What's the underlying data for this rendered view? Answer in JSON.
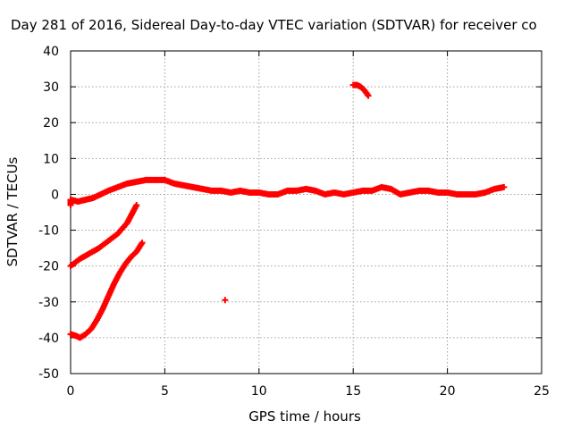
{
  "chart_data": {
    "type": "scatter",
    "title": "Day 281 of 2016, Sidereal Day-to-day VTEC variation (SDTVAR) for receiver co",
    "xlabel": "GPS time / hours",
    "ylabel": "SDTVAR / TECUs",
    "xlim": [
      0,
      25
    ],
    "ylim": [
      -50,
      40
    ],
    "xticks": [
      0,
      5,
      10,
      15,
      20,
      25
    ],
    "yticks": [
      -50,
      -40,
      -30,
      -20,
      -10,
      0,
      10,
      20,
      30,
      40
    ],
    "xtick_labels": [
      "0",
      "5",
      "10",
      "15",
      "20",
      "25"
    ],
    "ytick_labels": [
      "-50",
      "-40",
      "-30",
      "-20",
      "-10",
      "0",
      "10",
      "20",
      "30",
      "40"
    ],
    "grid": true,
    "marker_color": "#ff0000",
    "series": [
      {
        "name": "main-band",
        "points": [
          [
            0.0,
            -3
          ],
          [
            0.0,
            -1.5
          ],
          [
            0.4,
            -2
          ],
          [
            0.8,
            -1.5
          ],
          [
            1.2,
            -1
          ],
          [
            1.6,
            0
          ],
          [
            2.0,
            1
          ],
          [
            2.5,
            2
          ],
          [
            3.0,
            3
          ],
          [
            3.5,
            3.5
          ],
          [
            4.0,
            4
          ],
          [
            4.5,
            4
          ],
          [
            5.0,
            4
          ],
          [
            5.5,
            3
          ],
          [
            6.0,
            2.5
          ],
          [
            6.5,
            2
          ],
          [
            7.0,
            1.5
          ],
          [
            7.5,
            1
          ],
          [
            8.0,
            1
          ],
          [
            8.5,
            0.5
          ],
          [
            9.0,
            1
          ],
          [
            9.5,
            0.5
          ],
          [
            10.0,
            0.5
          ],
          [
            10.5,
            0
          ],
          [
            11.0,
            0
          ],
          [
            11.5,
            1
          ],
          [
            12.0,
            1
          ],
          [
            12.5,
            1.5
          ],
          [
            13.0,
            1
          ],
          [
            13.5,
            0
          ],
          [
            14.0,
            0.5
          ],
          [
            14.5,
            0
          ],
          [
            15.0,
            0.5
          ],
          [
            15.5,
            1
          ],
          [
            16.0,
            1
          ],
          [
            16.5,
            2
          ],
          [
            17.0,
            1.5
          ],
          [
            17.5,
            0
          ],
          [
            18.0,
            0.5
          ],
          [
            18.5,
            1
          ],
          [
            19.0,
            1
          ],
          [
            19.5,
            0.5
          ],
          [
            20.0,
            0.5
          ],
          [
            20.5,
            0
          ],
          [
            21.0,
            0
          ],
          [
            21.5,
            0
          ],
          [
            22.0,
            0.5
          ],
          [
            22.5,
            1.5
          ],
          [
            23.0,
            2
          ]
        ]
      },
      {
        "name": "arc-minus-20",
        "points": [
          [
            0.0,
            -20
          ],
          [
            0.5,
            -18
          ],
          [
            1.0,
            -16.5
          ],
          [
            1.5,
            -15
          ],
          [
            2.0,
            -13
          ],
          [
            2.5,
            -11
          ],
          [
            3.0,
            -8
          ],
          [
            3.5,
            -3
          ]
        ]
      },
      {
        "name": "arc-minus-40",
        "points": [
          [
            0.0,
            -39
          ],
          [
            0.3,
            -39.5
          ],
          [
            0.5,
            -40
          ],
          [
            0.8,
            -39
          ],
          [
            1.1,
            -37.5
          ],
          [
            1.4,
            -35
          ],
          [
            1.7,
            -32
          ],
          [
            2.0,
            -28.5
          ],
          [
            2.3,
            -25
          ],
          [
            2.6,
            -22
          ],
          [
            2.9,
            -19.5
          ],
          [
            3.2,
            -17.5
          ],
          [
            3.5,
            -16
          ],
          [
            3.8,
            -13.5
          ]
        ]
      },
      {
        "name": "arc-plus-30",
        "points": [
          [
            15.0,
            30.5
          ],
          [
            15.2,
            30.5
          ],
          [
            15.4,
            30
          ],
          [
            15.6,
            29
          ],
          [
            15.8,
            27.5
          ]
        ]
      },
      {
        "name": "isolated-point",
        "points": [
          [
            8.2,
            -29.5
          ]
        ]
      }
    ]
  }
}
